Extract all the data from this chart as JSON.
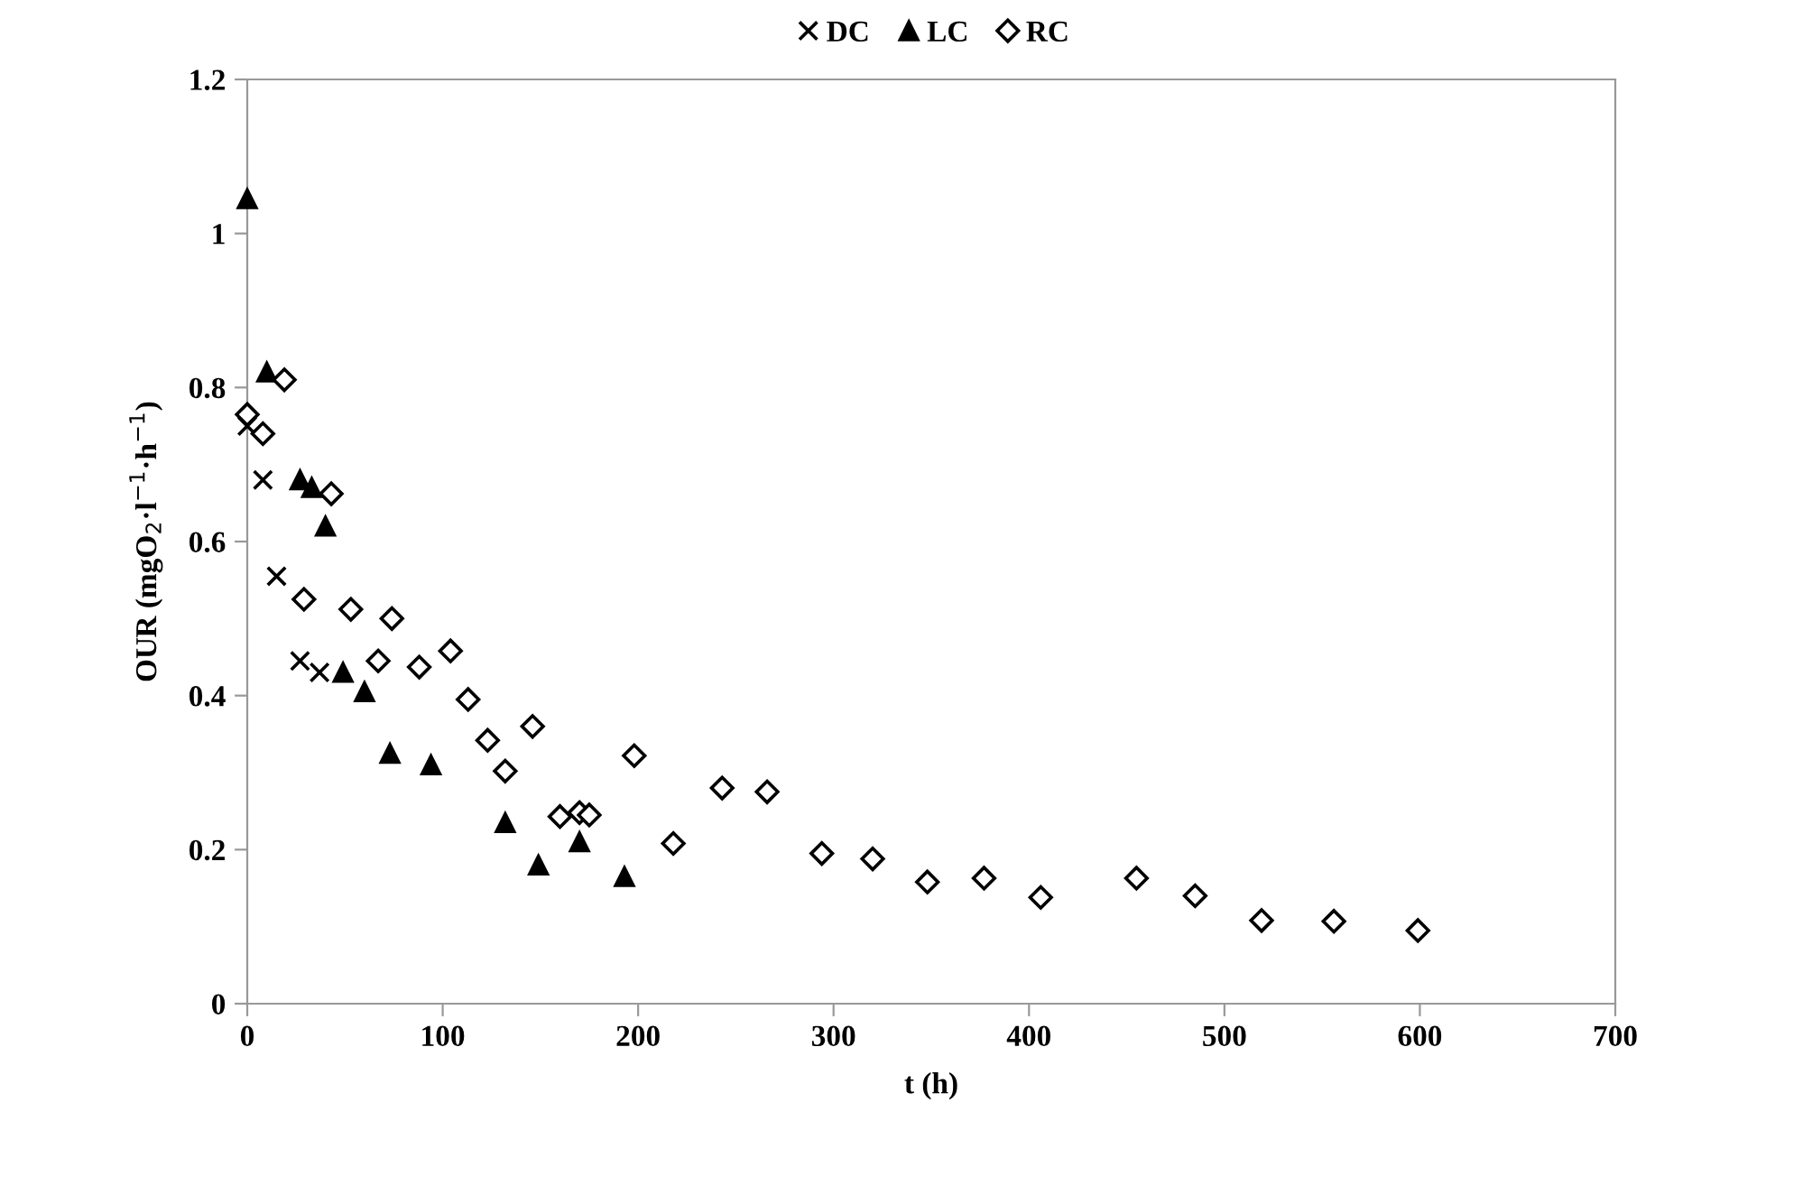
{
  "chart_data": {
    "type": "scatter",
    "xlabel": "t (h)",
    "ylabel": "OUR (mgO$_{2}$·l$^{−1}$·h$^{−1}$)",
    "xlim": [
      0,
      700
    ],
    "xticks": [
      0,
      100,
      200,
      300,
      400,
      500,
      600,
      700
    ],
    "ylim": [
      0,
      1.2
    ],
    "yticks": [
      0,
      0.2,
      0.4,
      0.6,
      0.8,
      1,
      1.2
    ],
    "grid": false,
    "legend": "top",
    "series": [
      {
        "name": "DC",
        "color": "#000000",
        "marker": "cross",
        "x": [
          0,
          8,
          15,
          27,
          37
        ],
        "values": [
          0.75,
          0.68,
          0.555,
          0.445,
          0.43
        ]
      },
      {
        "name": "LC",
        "color": "#000000",
        "marker": "triangle",
        "x": [
          0,
          10,
          27,
          33,
          40,
          49,
          60,
          73,
          94,
          132,
          149,
          170,
          193
        ],
        "values": [
          1.045,
          0.82,
          0.68,
          0.67,
          0.62,
          0.43,
          0.405,
          0.325,
          0.31,
          0.235,
          0.18,
          0.21,
          0.165
        ]
      },
      {
        "name": "RC",
        "color": "#000000",
        "marker": "diamond",
        "x": [
          0,
          8,
          19,
          29,
          43,
          53,
          67,
          74,
          88,
          104,
          113,
          123,
          132,
          146,
          160,
          170,
          175,
          198,
          218,
          243,
          266,
          294,
          320,
          348,
          377,
          406,
          455,
          485,
          519,
          556,
          599
        ],
        "values": [
          0.765,
          0.74,
          0.81,
          0.525,
          0.662,
          0.512,
          0.445,
          0.5,
          0.437,
          0.458,
          0.395,
          0.342,
          0.302,
          0.36,
          0.243,
          0.248,
          0.245,
          0.322,
          0.208,
          0.28,
          0.275,
          0.195,
          0.188,
          0.158,
          0.163,
          0.138,
          0.163,
          0.14,
          0.108,
          0.107,
          0.095
        ]
      }
    ]
  }
}
